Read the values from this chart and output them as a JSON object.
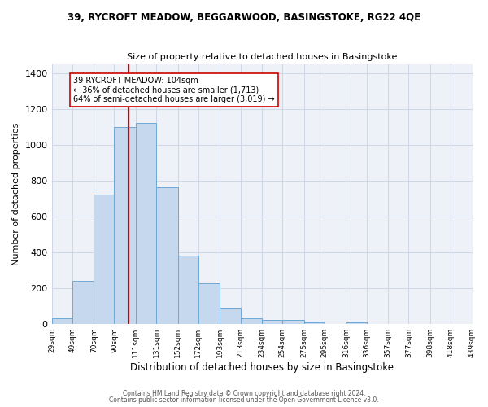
{
  "title_line1": "39, RYCROFT MEADOW, BEGGARWOOD, BASINGSTOKE, RG22 4QE",
  "title_line2": "Size of property relative to detached houses in Basingstoke",
  "xlabel": "Distribution of detached houses by size in Basingstoke",
  "ylabel": "Number of detached properties",
  "bin_labels": [
    "29sqm",
    "49sqm",
    "70sqm",
    "90sqm",
    "111sqm",
    "131sqm",
    "152sqm",
    "172sqm",
    "193sqm",
    "213sqm",
    "234sqm",
    "254sqm",
    "275sqm",
    "295sqm",
    "316sqm",
    "336sqm",
    "357sqm",
    "377sqm",
    "398sqm",
    "418sqm",
    "439sqm"
  ],
  "bin_edges": [
    29,
    49,
    70,
    90,
    111,
    131,
    152,
    172,
    193,
    213,
    234,
    254,
    275,
    295,
    316,
    336,
    357,
    377,
    398,
    418,
    439
  ],
  "bar_heights": [
    30,
    240,
    720,
    1100,
    1120,
    760,
    380,
    225,
    90,
    30,
    20,
    20,
    10,
    0,
    10,
    0,
    0,
    0,
    0,
    0
  ],
  "bar_color": "#c5d8ed",
  "bar_edge_color": "#6ea8d4",
  "vline_x": 104,
  "vline_color": "#cc0000",
  "annotation_line1": "39 RYCROFT MEADOW: 104sqm",
  "annotation_line2": "← 36% of detached houses are smaller (1,713)",
  "annotation_line3": "64% of semi-detached houses are larger (3,019) →",
  "annotation_box_color": "#ffffff",
  "annotation_box_edge": "#cc0000",
  "ylim": [
    0,
    1450
  ],
  "yticks": [
    0,
    200,
    400,
    600,
    800,
    1000,
    1200,
    1400
  ],
  "grid_color": "#d0d8e8",
  "background_color": "#eef2f8",
  "footer_line1": "Contains HM Land Registry data © Crown copyright and database right 2024.",
  "footer_line2": "Contains public sector information licensed under the Open Government Licence v3.0."
}
